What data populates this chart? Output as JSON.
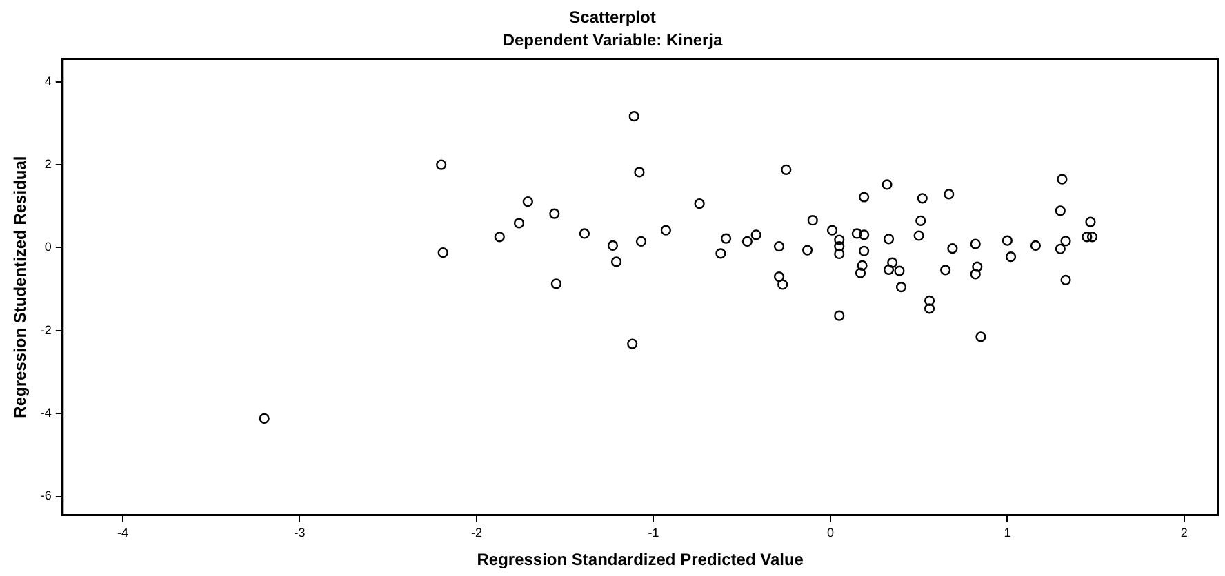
{
  "chart_data": {
    "type": "scatter",
    "title": "Scatterplot",
    "subtitle": "Dependent Variable: Kinerja",
    "xlabel": "Regression Standardized Predicted Value",
    "ylabel": "Regression Studentized Residual",
    "xlim": [
      -4.34,
      2.19
    ],
    "xticks": [
      -4,
      -3,
      -2,
      -1,
      0,
      1,
      2
    ],
    "ylim": [
      -6.45,
      4.55
    ],
    "yticks": [
      -6,
      -4,
      -2,
      0,
      2,
      4
    ],
    "grid": false,
    "legend": false,
    "marker": "circle",
    "series": [
      {
        "color": "#000000",
        "x": [
          -2.2,
          -2.19,
          -3.2,
          -1.11,
          -1.08,
          -1.71,
          -1.56,
          -1.76,
          -1.87,
          -1.39,
          -1.23,
          -1.21,
          -1.07,
          -0.93,
          -0.74,
          -1.55,
          -1.12,
          -0.25,
          -0.59,
          -0.62,
          -0.47,
          -0.42,
          -0.29,
          -0.29,
          -0.27,
          -0.13,
          -0.1,
          0.01,
          0.05,
          0.05,
          0.05,
          0.05,
          0.19,
          0.32,
          0.15,
          0.19,
          0.19,
          0.18,
          0.17,
          0.33,
          0.35,
          0.33,
          0.39,
          0.4,
          0.52,
          0.51,
          0.5,
          0.67,
          0.69,
          0.65,
          0.56,
          0.56,
          0.82,
          0.83,
          0.82,
          0.85,
          1.0,
          1.02,
          1.16,
          1.31,
          1.3,
          1.33,
          1.3,
          1.33,
          1.47,
          1.45,
          1.48
        ],
        "values": [
          2.0,
          -0.12,
          -4.12,
          3.17,
          1.82,
          1.11,
          0.82,
          0.59,
          0.26,
          0.34,
          0.05,
          -0.34,
          0.15,
          0.42,
          1.06,
          -0.87,
          -2.32,
          1.88,
          0.22,
          -0.14,
          0.15,
          0.31,
          0.03,
          -0.7,
          -0.89,
          -0.06,
          0.66,
          0.42,
          0.19,
          0.03,
          -0.15,
          -1.64,
          1.22,
          1.52,
          0.34,
          0.31,
          -0.08,
          -0.43,
          -0.61,
          0.21,
          -0.36,
          -0.53,
          -0.56,
          -0.95,
          1.19,
          0.65,
          0.29,
          1.29,
          -0.02,
          -0.54,
          -1.28,
          -1.47,
          0.09,
          -0.46,
          -0.64,
          -2.15,
          0.17,
          -0.22,
          0.05,
          1.65,
          0.89,
          0.16,
          -0.03,
          -0.78,
          0.62,
          0.26,
          0.26
        ]
      }
    ]
  }
}
